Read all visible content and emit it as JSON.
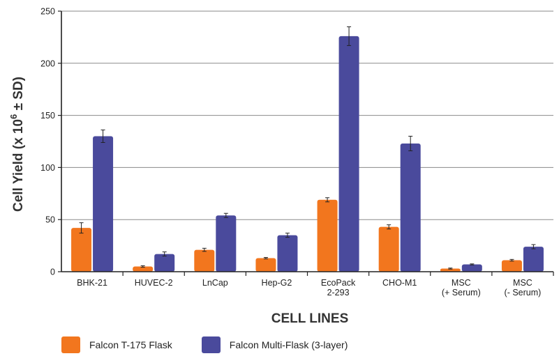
{
  "chart_data": {
    "type": "bar",
    "categories": [
      [
        "BHK-21"
      ],
      [
        "HUVEC-2"
      ],
      [
        "LnCap"
      ],
      [
        "Hep-G2"
      ],
      [
        "EcoPack",
        "2-293"
      ],
      [
        "CHO-M1"
      ],
      [
        "MSC",
        "(+ Serum)"
      ],
      [
        "MSC",
        "(- Serum)"
      ]
    ],
    "series": [
      {
        "name": "Falcon T-175 Flask",
        "color": "#f2761e",
        "values": [
          42,
          5,
          21,
          13,
          69,
          43,
          3,
          11
        ],
        "errors": [
          5,
          0.7,
          1.5,
          0.7,
          2,
          2,
          0.5,
          0.8
        ]
      },
      {
        "name": "Falcon Multi-Flask (3-layer)",
        "color": "#4a4a9c",
        "values": [
          130,
          17,
          54,
          35,
          226,
          123,
          7,
          24
        ],
        "errors": [
          6,
          2,
          2,
          2,
          9,
          7,
          0.5,
          2
        ]
      }
    ],
    "xlabel": "CELL LINES",
    "ylabel": {
      "main": "Cell Yield (x 10",
      "sup": "6",
      "tail": " ± SD)"
    },
    "yticks": [
      "0",
      "50",
      "100",
      "150",
      "200",
      "250"
    ],
    "ylim": [
      0,
      250
    ],
    "grid": true,
    "legend_position": "bottom-left"
  }
}
